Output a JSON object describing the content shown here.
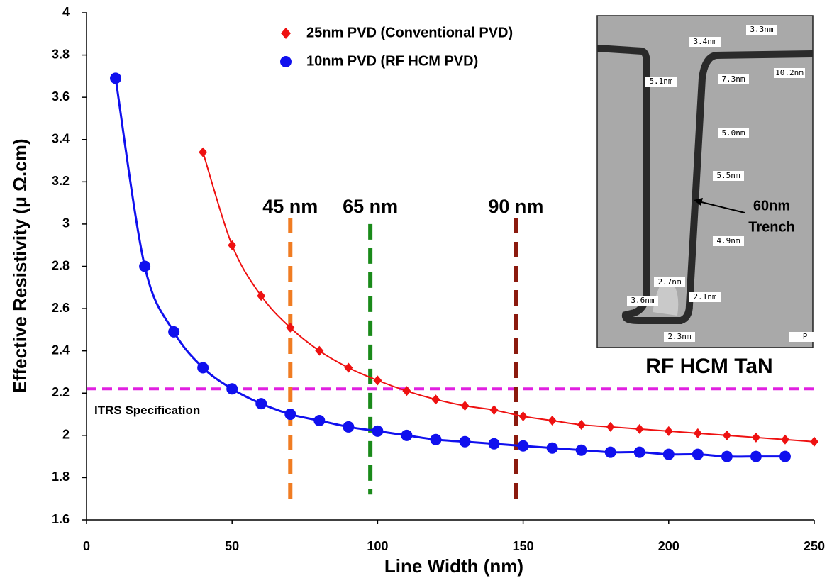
{
  "chart_data": {
    "type": "scatter-fit",
    "x_label": "Line Width (nm)",
    "y_label": "Effective Resistivity (μ Ω.cm)",
    "xlim": [
      0,
      250
    ],
    "xticks": [
      0,
      50,
      100,
      150,
      200,
      250
    ],
    "ylim": [
      1.6,
      4
    ],
    "yticks": [
      1.6,
      1.8,
      2,
      2.2,
      2.4,
      2.6,
      2.8,
      3,
      3.2,
      3.4,
      3.6,
      3.8,
      4
    ],
    "legend": "top",
    "series": [
      {
        "name": "25nm PVD (Conventional PVD)",
        "color": "#ee1111",
        "marker": "diamond",
        "x": [
          40,
          50,
          60,
          70,
          80,
          90,
          100,
          110,
          120,
          130,
          140,
          150,
          160,
          170,
          180,
          190,
          200,
          210,
          220,
          230,
          240,
          250
        ],
        "values": [
          3.34,
          2.9,
          2.66,
          2.51,
          2.4,
          2.32,
          2.26,
          2.21,
          2.17,
          2.14,
          2.12,
          2.09,
          2.07,
          2.05,
          2.04,
          2.03,
          2.02,
          2.01,
          2.0,
          1.99,
          1.98,
          1.97
        ]
      },
      {
        "name": "10nm PVD (RF HCM PVD)",
        "color": "#1010ee",
        "marker": "circle",
        "x": [
          10,
          20,
          30,
          40,
          50,
          60,
          70,
          80,
          90,
          100,
          110,
          120,
          130,
          140,
          150,
          160,
          170,
          180,
          190,
          200,
          210,
          220,
          230,
          240
        ],
        "values": [
          3.69,
          2.8,
          2.49,
          2.32,
          2.22,
          2.15,
          2.1,
          2.07,
          2.04,
          2.02,
          2.0,
          1.98,
          1.97,
          1.96,
          1.95,
          1.94,
          1.93,
          1.92,
          1.92,
          1.91,
          1.91,
          1.9,
          1.9,
          1.9
        ]
      }
    ],
    "reference_lines": [
      {
        "label": "45 nm",
        "x": 70,
        "ymin": 1.7,
        "ymax": 3.03,
        "color": "#f07c22"
      },
      {
        "label": "65 nm",
        "x": 97.5,
        "ymin": 1.72,
        "ymax": 3.0,
        "color": "#1a8a1a"
      },
      {
        "label": "90 nm",
        "x": 147.5,
        "ymin": 1.7,
        "ymax": 3.03,
        "color": "#8b1a0e"
      }
    ],
    "spec_line": {
      "label": "ITRS Specification",
      "y": 2.22,
      "color": "#e020e0"
    },
    "inset": {
      "caption": "RF HCM TaN",
      "labels": [
        "3.3nm",
        "3.4nm",
        "5.1nm",
        "7.3nm",
        "10.2nm",
        "5.0nm",
        "5.5nm",
        "4.9nm",
        "2.7nm",
        "2.1nm",
        "3.6nm",
        "2.3nm",
        "P"
      ],
      "annotation": [
        "60nm",
        "Trench"
      ]
    }
  }
}
